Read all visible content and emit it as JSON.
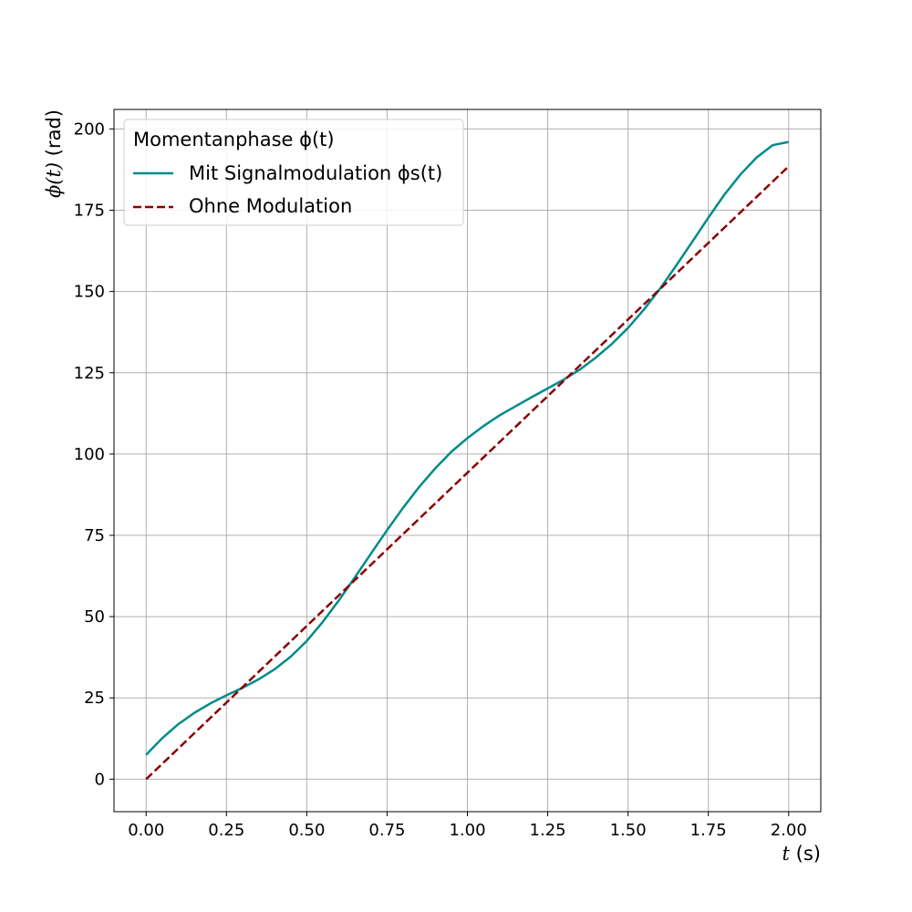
{
  "chart_data": {
    "type": "line",
    "xlabel": {
      "var": "t",
      "unit": "(s)"
    },
    "ylabel": {
      "var": "ϕ(t)",
      "unit": "(rad)"
    },
    "xlim": [
      -0.1,
      2.1
    ],
    "ylim": [
      -10,
      206
    ],
    "xticks": [
      "0.00",
      "0.25",
      "0.50",
      "0.75",
      "1.00",
      "1.25",
      "1.50",
      "1.75",
      "2.00"
    ],
    "xtick_values": [
      0,
      0.25,
      0.5,
      0.75,
      1.0,
      1.25,
      1.5,
      1.75,
      2.0
    ],
    "yticks": [
      "0",
      "25",
      "50",
      "75",
      "100",
      "125",
      "150",
      "175",
      "200"
    ],
    "ytick_values": [
      0,
      25,
      50,
      75,
      100,
      125,
      150,
      175,
      200
    ],
    "grid": true,
    "legend": {
      "placement": "top-left",
      "title": "Momentanphase ϕ(t)"
    },
    "series": [
      {
        "name": "Mit Signalmodulation ϕs(t)",
        "color": "#008b8b",
        "style": "solid",
        "x": [
          0.0,
          0.05,
          0.1,
          0.15,
          0.2,
          0.25,
          0.3,
          0.35,
          0.4,
          0.45,
          0.5,
          0.55,
          0.6,
          0.65,
          0.7,
          0.75,
          0.8,
          0.85,
          0.9,
          0.95,
          1.0,
          1.05,
          1.1,
          1.15,
          1.2,
          1.25,
          1.3,
          1.35,
          1.4,
          1.45,
          1.5,
          1.55,
          1.6,
          1.65,
          1.7,
          1.75,
          1.8,
          1.85,
          1.9,
          1.95,
          2.0
        ],
        "values": [
          7.5,
          12.6,
          16.9,
          20.4,
          23.3,
          25.8,
          28.1,
          30.7,
          33.8,
          37.7,
          42.5,
          48.4,
          55.0,
          62.1,
          69.4,
          76.6,
          83.5,
          89.9,
          95.6,
          100.7,
          104.9,
          108.6,
          111.9,
          114.7,
          117.5,
          120.2,
          122.9,
          126.0,
          129.7,
          133.9,
          138.8,
          144.5,
          150.9,
          158.0,
          165.3,
          172.7,
          179.8,
          186.0,
          191.2,
          195.0,
          196.0
        ]
      },
      {
        "name": "Ohne Modulation",
        "color": "#8b0000",
        "style": "dashed",
        "x": [
          0.0,
          2.0
        ],
        "values": [
          0.0,
          188.5
        ]
      }
    ]
  }
}
